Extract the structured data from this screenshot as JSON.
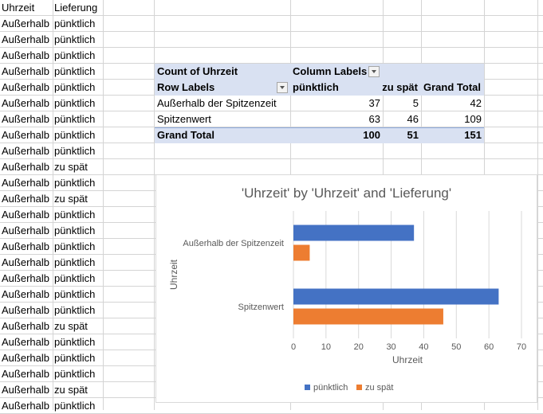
{
  "sheet": {
    "headers": {
      "a": "Uhrzeit",
      "b": "Lieferung"
    },
    "rows": [
      {
        "a": "Außerhalb der Spitzenzeit",
        "b": "pünktlich"
      },
      {
        "a": "Außerhalb der Spitzenzeit",
        "b": "pünktlich"
      },
      {
        "a": "Außerhalb der Spitzenzeit",
        "b": "pünktlich"
      },
      {
        "a": "Außerhalb der Spitzenzeit",
        "b": "pünktlich"
      },
      {
        "a": "Außerhalb der Spitzenzeit",
        "b": "pünktlich"
      },
      {
        "a": "Außerhalb der Spitzenzeit",
        "b": "pünktlich"
      },
      {
        "a": "Außerhalb der Spitzenzeit",
        "b": "pünktlich"
      },
      {
        "a": "Außerhalb der Spitzenzeit",
        "b": "pünktlich"
      },
      {
        "a": "Außerhalb der Spitzenzeit",
        "b": "pünktlich"
      },
      {
        "a": "Außerhalb der Spitzenzeit",
        "b": "zu spät"
      },
      {
        "a": "Außerhalb der Spitzenzeit",
        "b": "pünktlich"
      },
      {
        "a": "Außerhalb der Spitzenzeit",
        "b": "zu spät"
      },
      {
        "a": "Außerhalb der Spitzenzeit",
        "b": "pünktlich"
      },
      {
        "a": "Außerhalb der Spitzenzeit",
        "b": "pünktlich"
      },
      {
        "a": "Außerhalb der Spitzenzeit",
        "b": "pünktlich"
      },
      {
        "a": "Außerhalb der Spitzenzeit",
        "b": "pünktlich"
      },
      {
        "a": "Außerhalb der Spitzenzeit",
        "b": "pünktlich"
      },
      {
        "a": "Außerhalb der Spitzenzeit",
        "b": "pünktlich"
      },
      {
        "a": "Außerhalb der Spitzenzeit",
        "b": "pünktlich"
      },
      {
        "a": "Außerhalb der Spitzenzeit",
        "b": "zu spät"
      },
      {
        "a": "Außerhalb der Spitzenzeit",
        "b": "pünktlich"
      },
      {
        "a": "Außerhalb der Spitzenzeit",
        "b": "pünktlich"
      },
      {
        "a": "Außerhalb der Spitzenzeit",
        "b": "pünktlich"
      },
      {
        "a": "Außerhalb der Spitzenzeit",
        "b": "zu spät"
      },
      {
        "a": "Außerhalb der Spitzenzeit",
        "b": "pünktlich"
      }
    ]
  },
  "pivot": {
    "value_field": "Count of Uhrzeit",
    "column_labels": "Column Labels",
    "row_labels": "Row Labels",
    "columns": [
      "pünktlich",
      "zu spät",
      "Grand Total"
    ],
    "rows": [
      {
        "label": "Außerhalb der Spitzenzeit",
        "values": [
          "37",
          "5",
          "42"
        ]
      },
      {
        "label": "Spitzenwert",
        "values": [
          "63",
          "46",
          "109"
        ]
      }
    ],
    "grand_total": {
      "label": "Grand Total",
      "values": [
        "100",
        "51",
        "151"
      ]
    }
  },
  "chart_data": {
    "type": "bar",
    "orientation": "horizontal",
    "title": "'Uhrzeit' by 'Uhrzeit' and 'Lieferung'",
    "categories": [
      "Außerhalb der Spitzenzeit",
      "Spitzenwert"
    ],
    "series": [
      {
        "name": "pünktlich",
        "values": [
          37,
          63
        ],
        "color": "#4472c4"
      },
      {
        "name": "zu spät",
        "values": [
          5,
          46
        ],
        "color": "#ed7d31"
      }
    ],
    "xlabel": "Uhrzeit",
    "ylabel": "Uhrzeit",
    "xlim": [
      0,
      70
    ],
    "xticks": [
      0,
      10,
      20,
      30,
      40,
      50,
      60,
      70
    ],
    "grid": true,
    "legend": "bottom"
  }
}
